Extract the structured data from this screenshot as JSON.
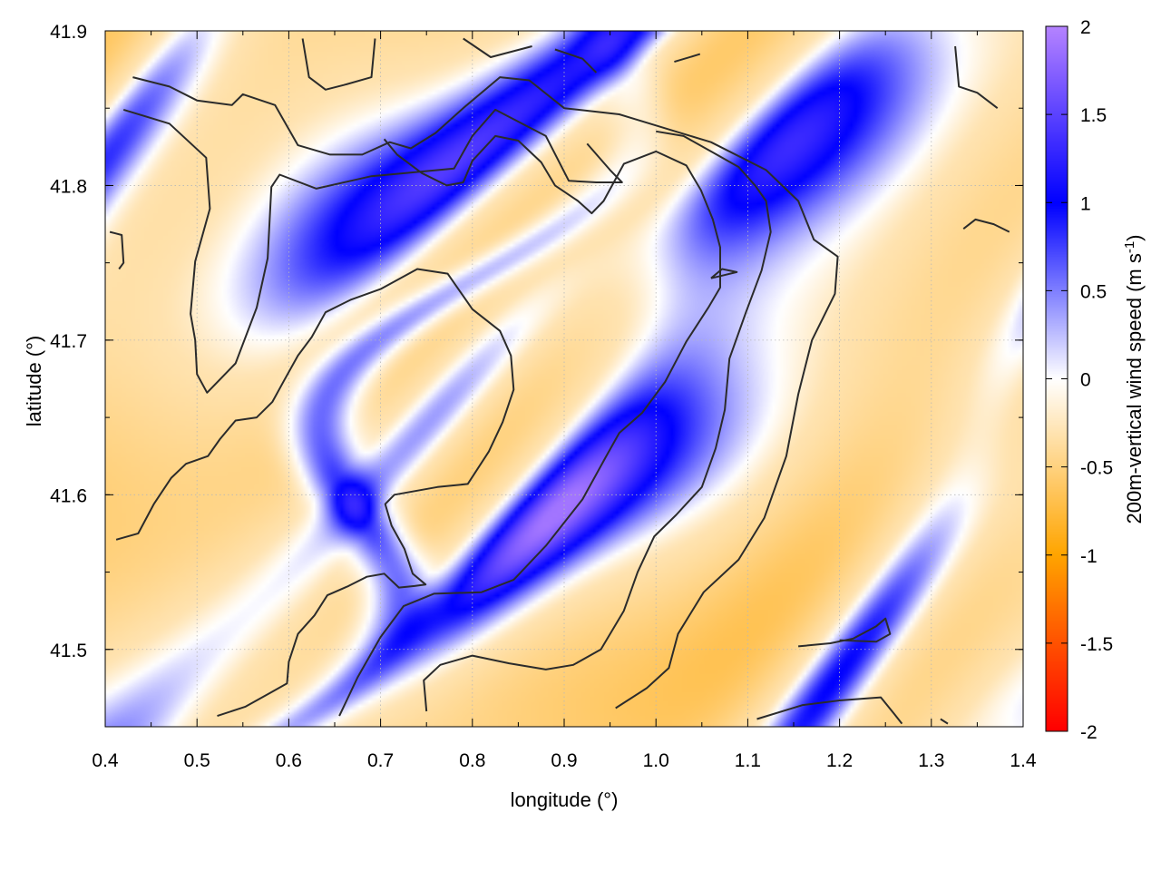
{
  "chart_data": {
    "type": "heatmap",
    "xlabel": "longitude (°)",
    "ylabel": "latitude (°)",
    "colorbar_label": "200m-vertical wind speed (m s",
    "colorbar_unit_exp": "-1",
    "colorbar_unit_close": ")",
    "xlim": [
      0.4,
      1.4
    ],
    "ylim": [
      41.45,
      41.9
    ],
    "xticks": [
      0.4,
      0.5,
      0.6,
      0.7,
      0.8,
      0.9,
      1.0,
      1.1,
      1.2,
      1.3,
      1.4
    ],
    "xtick_labels": [
      "0.4",
      "0.5",
      "0.6",
      "0.7",
      "0.8",
      "0.9",
      "1.0",
      "1.1",
      "1.2",
      "1.3",
      "1.4"
    ],
    "yticks": [
      41.5,
      41.6,
      41.7,
      41.8,
      41.9
    ],
    "ytick_labels": [
      "41.5",
      "41.6",
      "41.7",
      "41.8",
      "41.9"
    ],
    "colorbar_range": [
      -2,
      2
    ],
    "colorbar_ticks": [
      2,
      1.5,
      1,
      0.5,
      0,
      -0.5,
      -1,
      -1.5,
      -2
    ],
    "colorbar_tick_labels": [
      "2",
      "1.5",
      "1",
      "0.5",
      "0",
      "-0.5",
      "-1",
      "-1.5",
      "-2"
    ],
    "colorscale": [
      {
        "v": -2,
        "color": "#ff0000"
      },
      {
        "v": -1,
        "color": "#ffa500"
      },
      {
        "v": 0,
        "color": "#ffffff"
      },
      {
        "v": 1,
        "color": "#0000ff"
      },
      {
        "v": 2,
        "color": "#b482ff"
      }
    ],
    "grid": true,
    "contour_color": "#2b2b2b",
    "contours": [
      [
        [
          0.43,
          41.87
        ],
        [
          0.47,
          41.864
        ],
        [
          0.5,
          41.855
        ],
        [
          0.538,
          41.852
        ],
        [
          0.55,
          41.859
        ],
        [
          0.585,
          41.852
        ],
        [
          0.61,
          41.826
        ],
        [
          0.645,
          41.82
        ],
        [
          0.68,
          41.82
        ],
        [
          0.71,
          41.828
        ],
        [
          0.733,
          41.824
        ],
        [
          0.76,
          41.834
        ],
        [
          0.79,
          41.85
        ],
        [
          0.83,
          41.87
        ],
        [
          0.862,
          41.868
        ],
        [
          0.9,
          41.85
        ],
        [
          0.96,
          41.846
        ],
        [
          1.06,
          41.828
        ],
        [
          1.12,
          41.81
        ],
        [
          1.155,
          41.79
        ],
        [
          1.172,
          41.765
        ],
        [
          1.198,
          41.754
        ],
        [
          1.195,
          41.73
        ],
        [
          1.17,
          41.7
        ],
        [
          1.155,
          41.665
        ],
        [
          1.142,
          41.625
        ],
        [
          1.118,
          41.585
        ],
        [
          1.09,
          41.558
        ],
        [
          1.052,
          41.537
        ],
        [
          1.024,
          41.51
        ],
        [
          1.014,
          41.488
        ],
        [
          0.99,
          41.475
        ],
        [
          0.956,
          41.462
        ]
      ],
      [
        [
          0.42,
          41.849
        ],
        [
          0.47,
          41.84
        ],
        [
          0.51,
          41.818
        ],
        [
          0.514,
          41.785
        ],
        [
          0.498,
          41.751
        ],
        [
          0.493,
          41.717
        ],
        [
          0.498,
          41.7
        ],
        [
          0.5,
          41.678
        ],
        [
          0.511,
          41.666
        ],
        [
          0.542,
          41.685
        ],
        [
          0.565,
          41.721
        ],
        [
          0.577,
          41.753
        ],
        [
          0.581,
          41.799
        ],
        [
          0.59,
          41.807
        ],
        [
          0.63,
          41.798
        ],
        [
          0.69,
          41.806
        ],
        [
          0.78,
          41.811
        ],
        [
          0.8,
          41.832
        ],
        [
          0.825,
          41.849
        ],
        [
          0.88,
          41.832
        ],
        [
          0.905,
          41.803
        ],
        [
          0.935,
          41.802
        ],
        [
          0.963,
          41.802
        ],
        [
          0.95,
          41.81
        ],
        [
          0.925,
          41.827
        ]
      ],
      [
        [
          0.412,
          41.571
        ],
        [
          0.436,
          41.575
        ],
        [
          0.453,
          41.594
        ],
        [
          0.472,
          41.611
        ],
        [
          0.488,
          41.62
        ],
        [
          0.512,
          41.625
        ],
        [
          0.525,
          41.636
        ],
        [
          0.542,
          41.648
        ],
        [
          0.565,
          41.65
        ],
        [
          0.582,
          41.66
        ],
        [
          0.595,
          41.674
        ],
        [
          0.61,
          41.69
        ],
        [
          0.625,
          41.702
        ],
        [
          0.64,
          41.718
        ],
        [
          0.667,
          41.726
        ],
        [
          0.7,
          41.733
        ],
        [
          0.74,
          41.746
        ],
        [
          0.773,
          41.743
        ],
        [
          0.8,
          41.72
        ],
        [
          0.83,
          41.706
        ],
        [
          0.842,
          41.69
        ],
        [
          0.845,
          41.668
        ],
        [
          0.833,
          41.647
        ],
        [
          0.818,
          41.628
        ],
        [
          0.795,
          41.607
        ],
        [
          0.762,
          41.605
        ],
        [
          0.715,
          41.6
        ],
        [
          0.705,
          41.594
        ],
        [
          0.712,
          41.58
        ],
        [
          0.726,
          41.565
        ],
        [
          0.735,
          41.549
        ],
        [
          0.749,
          41.542
        ],
        [
          0.737,
          41.541
        ],
        [
          0.72,
          41.54
        ],
        [
          0.704,
          41.549
        ],
        [
          0.685,
          41.547
        ],
        [
          0.665,
          41.541
        ],
        [
          0.642,
          41.535
        ],
        [
          0.628,
          41.522
        ],
        [
          0.61,
          41.51
        ],
        [
          0.6,
          41.492
        ],
        [
          0.598,
          41.478
        ],
        [
          0.58,
          41.472
        ],
        [
          0.553,
          41.463
        ],
        [
          0.522,
          41.457
        ]
      ],
      [
        [
          0.655,
          41.457
        ],
        [
          0.675,
          41.482
        ],
        [
          0.7,
          41.508
        ],
        [
          0.725,
          41.528
        ],
        [
          0.758,
          41.536
        ],
        [
          0.81,
          41.537
        ],
        [
          0.845,
          41.545
        ],
        [
          0.88,
          41.567
        ],
        [
          0.92,
          41.597
        ],
        [
          0.945,
          41.624
        ],
        [
          0.96,
          41.64
        ],
        [
          0.985,
          41.653
        ],
        [
          1.01,
          41.673
        ],
        [
          1.033,
          41.699
        ],
        [
          1.057,
          41.721
        ],
        [
          1.07,
          41.734
        ],
        [
          1.07,
          41.76
        ],
        [
          1.062,
          41.778
        ],
        [
          1.049,
          41.797
        ],
        [
          1.033,
          41.813
        ],
        [
          1.0,
          41.822
        ],
        [
          0.965,
          41.814
        ],
        [
          0.943,
          41.79
        ],
        [
          0.93,
          41.782
        ],
        [
          0.915,
          41.79
        ],
        [
          0.89,
          41.8
        ],
        [
          0.875,
          41.815
        ],
        [
          0.85,
          41.829
        ],
        [
          0.825,
          41.832
        ],
        [
          0.8,
          41.816
        ],
        [
          0.79,
          41.802
        ],
        [
          0.772,
          41.8
        ],
        [
          0.745,
          41.808
        ],
        [
          0.718,
          41.82
        ],
        [
          0.704,
          41.83
        ]
      ],
      [
        [
          0.75,
          41.46
        ],
        [
          0.747,
          41.48
        ],
        [
          0.765,
          41.49
        ],
        [
          0.8,
          41.496
        ],
        [
          0.84,
          41.491
        ],
        [
          0.88,
          41.487
        ],
        [
          0.91,
          41.49
        ],
        [
          0.94,
          41.5
        ],
        [
          0.965,
          41.525
        ],
        [
          0.98,
          41.55
        ],
        [
          0.998,
          41.573
        ],
        [
          1.022,
          41.587
        ],
        [
          1.05,
          41.605
        ],
        [
          1.065,
          41.63
        ],
        [
          1.075,
          41.655
        ],
        [
          1.08,
          41.688
        ],
        [
          1.098,
          41.718
        ],
        [
          1.115,
          41.745
        ],
        [
          1.125,
          41.77
        ],
        [
          1.12,
          41.79
        ],
        [
          1.108,
          41.8
        ],
        [
          1.09,
          41.812
        ],
        [
          1.06,
          41.822
        ],
        [
          1.03,
          41.832
        ],
        [
          1.0,
          41.835
        ]
      ],
      [
        [
          1.11,
          41.455
        ],
        [
          1.16,
          41.464
        ],
        [
          1.2,
          41.467
        ],
        [
          1.245,
          41.469
        ],
        [
          1.26,
          41.458
        ],
        [
          1.268,
          41.452
        ]
      ],
      [
        [
          1.155,
          41.502
        ],
        [
          1.19,
          41.504
        ],
        [
          1.215,
          41.507
        ],
        [
          1.24,
          41.515
        ],
        [
          1.25,
          41.52
        ],
        [
          1.255,
          41.51
        ],
        [
          1.24,
          41.505
        ],
        [
          1.2,
          41.506
        ]
      ],
      [
        [
          1.06,
          41.74
        ],
        [
          1.074,
          41.742
        ],
        [
          1.088,
          41.744
        ],
        [
          1.072,
          41.746
        ],
        [
          1.06,
          41.74
        ]
      ],
      [
        [
          1.326,
          41.89
        ],
        [
          1.33,
          41.864
        ],
        [
          1.35,
          41.86
        ],
        [
          1.372,
          41.85
        ]
      ],
      [
        [
          1.335,
          41.772
        ],
        [
          1.348,
          41.778
        ],
        [
          1.368,
          41.775
        ],
        [
          1.385,
          41.77
        ]
      ],
      [
        [
          0.405,
          41.77
        ],
        [
          0.418,
          41.768
        ],
        [
          0.42,
          41.75
        ],
        [
          0.415,
          41.746
        ]
      ],
      [
        [
          0.615,
          41.895
        ],
        [
          0.622,
          41.87
        ],
        [
          0.64,
          41.862
        ],
        [
          0.66,
          41.865
        ],
        [
          0.69,
          41.87
        ],
        [
          0.694,
          41.895
        ]
      ],
      [
        [
          0.79,
          41.895
        ],
        [
          0.82,
          41.883
        ],
        [
          0.865,
          41.89
        ]
      ],
      [
        [
          0.89,
          41.888
        ],
        [
          0.92,
          41.882
        ],
        [
          0.935,
          41.873
        ]
      ],
      [
        [
          1.02,
          41.88
        ],
        [
          1.048,
          41.885
        ]
      ],
      [
        [
          1.31,
          41.455
        ],
        [
          1.318,
          41.452
        ]
      ]
    ]
  }
}
